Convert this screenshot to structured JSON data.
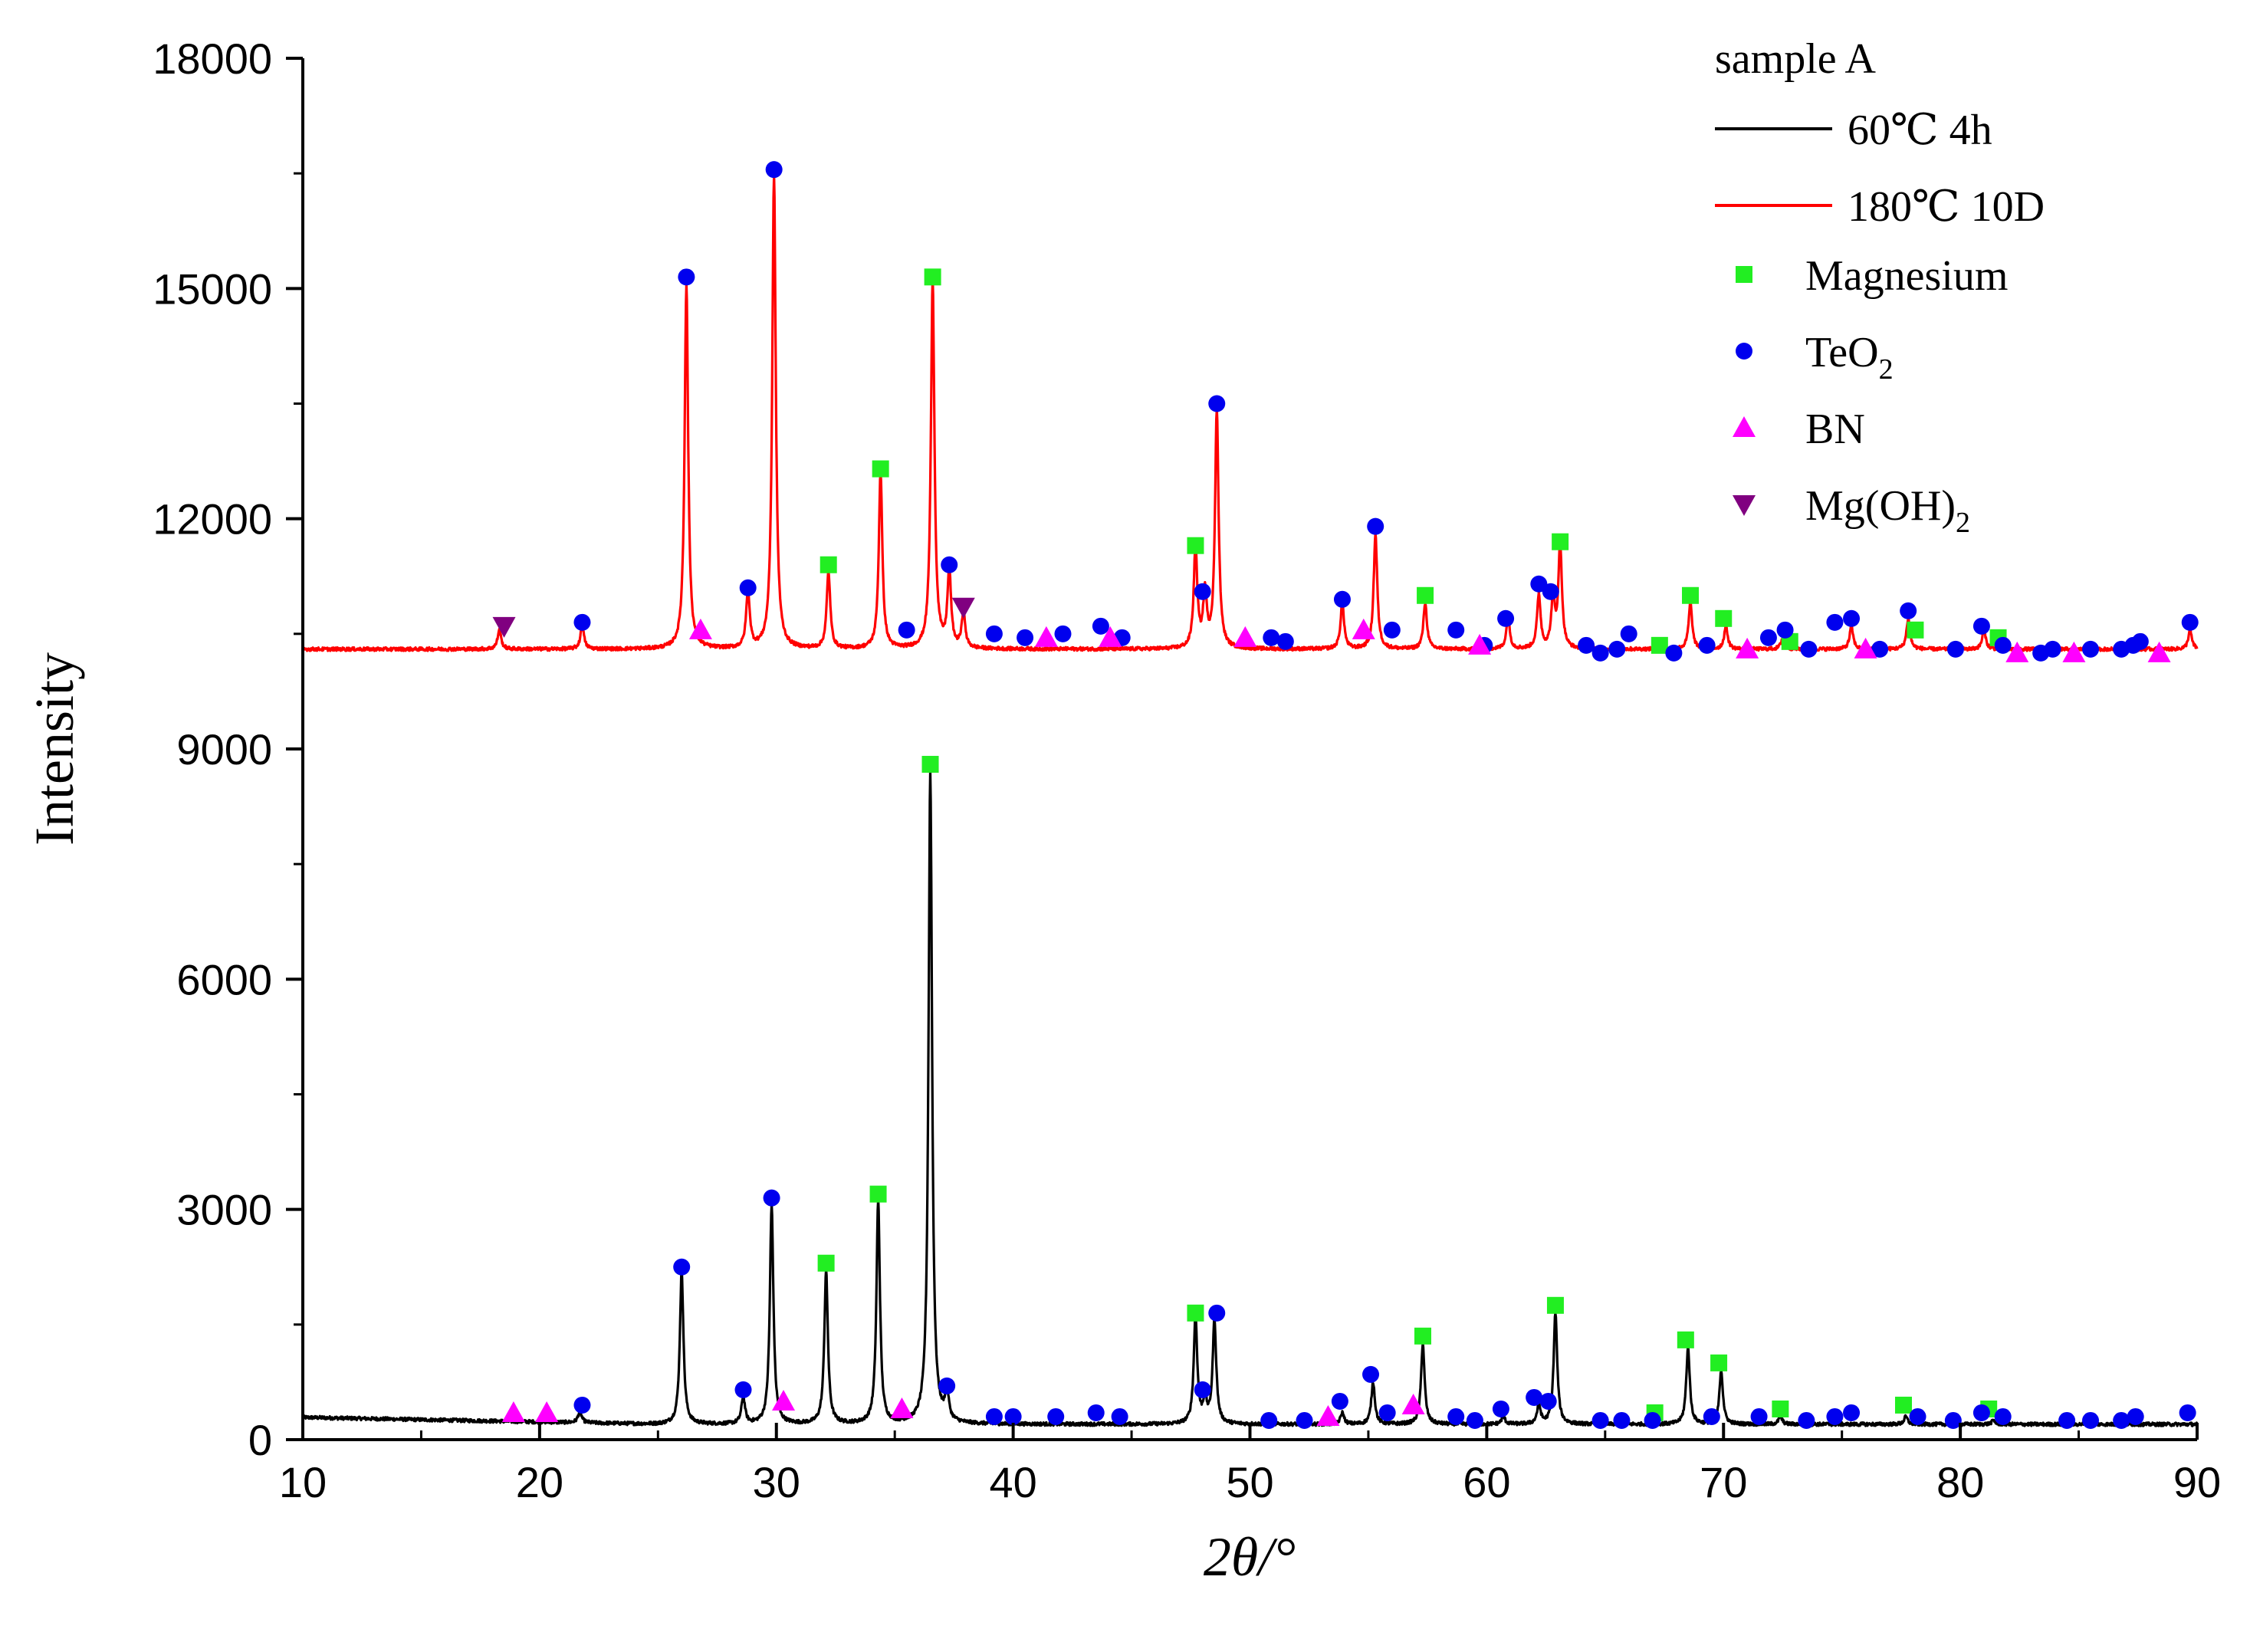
{
  "chart_data": {
    "type": "line",
    "title": "",
    "xlabel": "2θ/°",
    "ylabel": "Intensity",
    "xlim": [
      10,
      90
    ],
    "ylim": [
      0,
      18000
    ],
    "x_ticks": [
      "10",
      "20",
      "30",
      "40",
      "50",
      "60",
      "70",
      "80",
      "90"
    ],
    "y_ticks": [
      "0",
      "3000",
      "6000",
      "9000",
      "12000",
      "15000",
      "18000"
    ],
    "legend": {
      "title": "sample A",
      "position": "top-right",
      "series_entries": [
        {
          "label": "60℃ 4h",
          "color": "#000000"
        },
        {
          "label": "180℃ 10D",
          "color": "#ff0000"
        }
      ],
      "marker_entries": [
        {
          "label": "Magnesium",
          "marker": "square",
          "color": "#22ee22"
        },
        {
          "label": "TeO",
          "subscript": "2",
          "marker": "circle",
          "color": "#0000ee"
        },
        {
          "label": "BN",
          "marker": "triangle-up",
          "color": "#ff00ff"
        },
        {
          "label": "Mg(OH)",
          "subscript": "2",
          "marker": "triangle-down",
          "color": "#800080"
        }
      ]
    },
    "series": [
      {
        "name": "60℃ 4h",
        "color": "#000000",
        "baseline": 200,
        "peaks": [
          [
            21.7,
            350
          ],
          [
            26.0,
            2200
          ],
          [
            28.6,
            550
          ],
          [
            29.8,
            3050
          ],
          [
            32.1,
            2200
          ],
          [
            34.3,
            3100
          ],
          [
            36.5,
            8700
          ],
          [
            37.2,
            600
          ],
          [
            47.7,
            1600
          ],
          [
            48.1,
            500
          ],
          [
            48.5,
            1550
          ],
          [
            53.9,
            350
          ],
          [
            55.2,
            750
          ],
          [
            57.3,
            1250
          ],
          [
            60.7,
            300
          ],
          [
            62.2,
            450
          ],
          [
            62.9,
            1650
          ],
          [
            68.5,
            1200
          ],
          [
            69.9,
            900
          ],
          [
            72.4,
            300
          ],
          [
            77.7,
            300
          ],
          [
            81.4,
            250
          ]
        ]
      },
      {
        "name": "180℃ 10D",
        "color": "#ff0000",
        "baseline": 10300,
        "peaks": [
          [
            18.3,
            10550
          ],
          [
            21.8,
            10600
          ],
          [
            26.2,
            15050
          ],
          [
            28.8,
            11050
          ],
          [
            29.9,
            16450
          ],
          [
            32.2,
            11300
          ],
          [
            34.4,
            12600
          ],
          [
            36.6,
            15100
          ],
          [
            37.3,
            11300
          ],
          [
            37.9,
            10750
          ],
          [
            47.7,
            11600
          ],
          [
            48.1,
            11000
          ],
          [
            48.6,
            13400
          ],
          [
            53.9,
            10900
          ],
          [
            55.3,
            11800
          ],
          [
            57.4,
            10900
          ],
          [
            60.9,
            10700
          ],
          [
            62.2,
            11000
          ],
          [
            62.8,
            10950
          ],
          [
            63.1,
            11650
          ],
          [
            68.6,
            10900
          ],
          [
            70.1,
            10600
          ],
          [
            72.5,
            10450
          ],
          [
            75.4,
            10600
          ],
          [
            77.8,
            10700
          ],
          [
            81.0,
            10550
          ],
          [
            89.7,
            10550
          ]
        ]
      }
    ],
    "markers": {
      "Magnesium": [
        [
          32.1,
          2300
        ],
        [
          34.3,
          3200
        ],
        [
          36.5,
          8800
        ],
        [
          47.7,
          1650
        ],
        [
          57.3,
          1350
        ],
        [
          62.9,
          1750
        ],
        [
          67.1,
          350
        ],
        [
          68.4,
          1300
        ],
        [
          69.8,
          1000
        ],
        [
          72.4,
          400
        ],
        [
          77.6,
          450
        ],
        [
          81.2,
          400
        ],
        [
          32.2,
          11400
        ],
        [
          34.4,
          12650
        ],
        [
          36.6,
          15150
        ],
        [
          47.7,
          11650
        ],
        [
          57.4,
          11000
        ],
        [
          63.1,
          11700
        ],
        [
          67.3,
          10350
        ],
        [
          68.6,
          11000
        ],
        [
          70.0,
          10700
        ],
        [
          72.8,
          10400
        ],
        [
          78.1,
          10550
        ],
        [
          81.6,
          10450
        ]
      ],
      "TeO2": [
        [
          21.8,
          450
        ],
        [
          26.0,
          2250
        ],
        [
          28.6,
          650
        ],
        [
          29.8,
          3150
        ],
        [
          37.2,
          700
        ],
        [
          39.2,
          300
        ],
        [
          40.0,
          300
        ],
        [
          41.8,
          300
        ],
        [
          43.5,
          350
        ],
        [
          44.5,
          300
        ],
        [
          48.0,
          650
        ],
        [
          48.6,
          1650
        ],
        [
          50.8,
          250
        ],
        [
          52.3,
          250
        ],
        [
          53.8,
          500
        ],
        [
          55.1,
          850
        ],
        [
          55.8,
          350
        ],
        [
          58.7,
          300
        ],
        [
          59.5,
          250
        ],
        [
          60.6,
          400
        ],
        [
          62.0,
          550
        ],
        [
          62.6,
          500
        ],
        [
          64.8,
          250
        ],
        [
          65.7,
          250
        ],
        [
          67.0,
          250
        ],
        [
          69.5,
          300
        ],
        [
          71.5,
          300
        ],
        [
          73.5,
          250
        ],
        [
          74.7,
          300
        ],
        [
          75.4,
          350
        ],
        [
          78.2,
          300
        ],
        [
          79.7,
          250
        ],
        [
          80.9,
          350
        ],
        [
          81.8,
          300
        ],
        [
          84.5,
          250
        ],
        [
          85.5,
          250
        ],
        [
          86.8,
          250
        ],
        [
          87.4,
          300
        ],
        [
          89.6,
          350
        ],
        [
          21.8,
          10650
        ],
        [
          26.2,
          15150
        ],
        [
          28.8,
          11100
        ],
        [
          29.9,
          16550
        ],
        [
          35.5,
          10550
        ],
        [
          37.3,
          11400
        ],
        [
          39.2,
          10500
        ],
        [
          40.5,
          10450
        ],
        [
          42.1,
          10500
        ],
        [
          43.7,
          10600
        ],
        [
          44.6,
          10450
        ],
        [
          48.0,
          11050
        ],
        [
          48.6,
          13500
        ],
        [
          50.9,
          10450
        ],
        [
          51.5,
          10400
        ],
        [
          53.9,
          10950
        ],
        [
          55.3,
          11900
        ],
        [
          56.0,
          10550
        ],
        [
          58.7,
          10550
        ],
        [
          59.9,
          10350
        ],
        [
          60.8,
          10700
        ],
        [
          62.2,
          11150
        ],
        [
          62.7,
          11050
        ],
        [
          64.2,
          10350
        ],
        [
          64.8,
          10250
        ],
        [
          65.5,
          10300
        ],
        [
          66.0,
          10500
        ],
        [
          67.9,
          10250
        ],
        [
          69.3,
          10350
        ],
        [
          71.9,
          10450
        ],
        [
          72.6,
          10550
        ],
        [
          73.6,
          10300
        ],
        [
          74.7,
          10650
        ],
        [
          75.4,
          10700
        ],
        [
          76.6,
          10300
        ],
        [
          77.8,
          10800
        ],
        [
          79.8,
          10300
        ],
        [
          80.9,
          10600
        ],
        [
          81.8,
          10350
        ],
        [
          83.4,
          10250
        ],
        [
          83.9,
          10300
        ],
        [
          85.5,
          10300
        ],
        [
          86.8,
          10300
        ],
        [
          87.3,
          10350
        ],
        [
          87.6,
          10400
        ],
        [
          89.7,
          10650
        ]
      ],
      "BN": [
        [
          18.9,
          350
        ],
        [
          20.3,
          350
        ],
        [
          30.3,
          500
        ],
        [
          35.3,
          400
        ],
        [
          53.3,
          300
        ],
        [
          56.9,
          450
        ],
        [
          26.8,
          10550
        ],
        [
          41.4,
          10450
        ],
        [
          44.1,
          10450
        ],
        [
          49.8,
          10450
        ],
        [
          54.8,
          10550
        ],
        [
          59.7,
          10350
        ],
        [
          71.0,
          10300
        ],
        [
          76.0,
          10300
        ],
        [
          82.4,
          10250
        ],
        [
          84.8,
          10250
        ],
        [
          88.4,
          10250
        ]
      ],
      "MgOH2": [
        [
          18.5,
          10600
        ],
        [
          37.9,
          10850
        ]
      ]
    }
  }
}
